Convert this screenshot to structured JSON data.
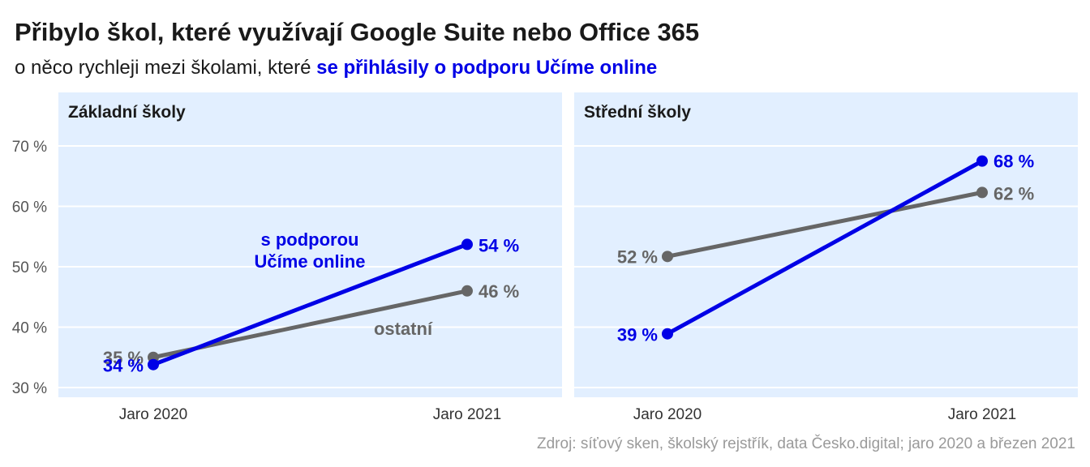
{
  "header": {
    "title": "Přibylo škol, které využívají Google Suite nebo Office 365",
    "subtitle_prefix": "o něco rychleji mezi školami, které ",
    "subtitle_highlight": "se přihlásily o podporu Učíme online"
  },
  "source": "Zdroj: síťový sken, školský rejstřík, data Česko.digital; jaro 2020 a březen 2021",
  "colors": {
    "panel_bg": "#e2efff",
    "blue": "#0000e6",
    "gray": "#666666",
    "axis_text": "#555555"
  },
  "chart_data": {
    "type": "line",
    "ylim": [
      28,
      74
    ],
    "yticks": [
      30,
      40,
      50,
      60,
      70
    ],
    "ytick_labels": [
      "30 %",
      "40 %",
      "50 %",
      "60 %",
      "70 %"
    ],
    "x": [
      "Jaro 2020",
      "Jaro 2021"
    ],
    "panels": [
      {
        "title": "Základní školy",
        "series": [
          {
            "name": "ostatní",
            "color": "gray",
            "values": [
              35,
              46
            ],
            "labels": [
              "35 %",
              "46 %"
            ]
          },
          {
            "name": "s podporou Učíme online",
            "color": "blue",
            "values": [
              33.8,
              53.7
            ],
            "labels": [
              "34 %",
              "54 %"
            ]
          }
        ],
        "annotations": [
          {
            "lines": [
              "s podporou",
              "Učíme online"
            ],
            "color": "blue"
          },
          {
            "lines": [
              "ostatní"
            ],
            "color": "gray"
          }
        ]
      },
      {
        "title": "Střední školy",
        "series": [
          {
            "name": "ostatní",
            "color": "gray",
            "values": [
              51.7,
              62.3
            ],
            "labels": [
              "52 %",
              "62 %"
            ]
          },
          {
            "name": "s podporou Učíme online",
            "color": "blue",
            "values": [
              38.9,
              67.5
            ],
            "labels": [
              "39 %",
              "68 %"
            ]
          }
        ],
        "annotations": []
      }
    ]
  }
}
